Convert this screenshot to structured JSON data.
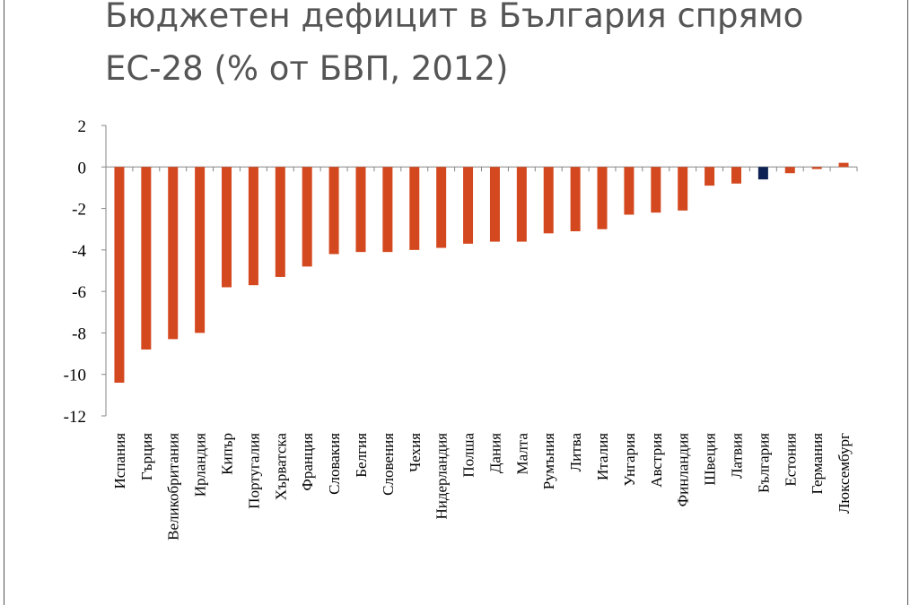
{
  "title": "Бюджетен дефицит в България спрямо ЕС-28 (% от БВП, 2012)",
  "chart_data": {
    "type": "bar",
    "title": "Бюджетен дефицит в България спрямо ЕС-28 (% от БВП, 2012)",
    "xlabel": "",
    "ylabel": "",
    "ylim": [
      -12,
      2
    ],
    "yticks": [
      2,
      0,
      -2,
      -4,
      -6,
      -8,
      -10,
      -12
    ],
    "grid": false,
    "legend": "none",
    "categories": [
      "Испания",
      "Гърция",
      "Великобритания",
      "Ирландия",
      "Кипър",
      "Португалия",
      "Хърватска",
      "Франция",
      "Словакия",
      "Белгия",
      "Словения",
      "Чехия",
      "Нидерландия",
      "Полша",
      "Дания",
      "Малта",
      "Румъния",
      "Литва",
      "Италия",
      "Унгария",
      "Австрия",
      "Финландия",
      "Швеция",
      "Латвия",
      "България",
      "Естония",
      "Германия",
      "Люксембург"
    ],
    "values": [
      -10.4,
      -8.8,
      -8.3,
      -8.0,
      -5.8,
      -5.7,
      -5.3,
      -4.8,
      -4.2,
      -4.1,
      -4.1,
      -4.0,
      -3.9,
      -3.7,
      -3.6,
      -3.6,
      -3.2,
      -3.1,
      -3.0,
      -2.3,
      -2.2,
      -2.1,
      -0.9,
      -0.8,
      -0.6,
      -0.3,
      -0.1,
      0.2
    ],
    "colors": {
      "default": "#d4481f",
      "highlight": "#0d2252"
    },
    "highlight_category": "България"
  }
}
